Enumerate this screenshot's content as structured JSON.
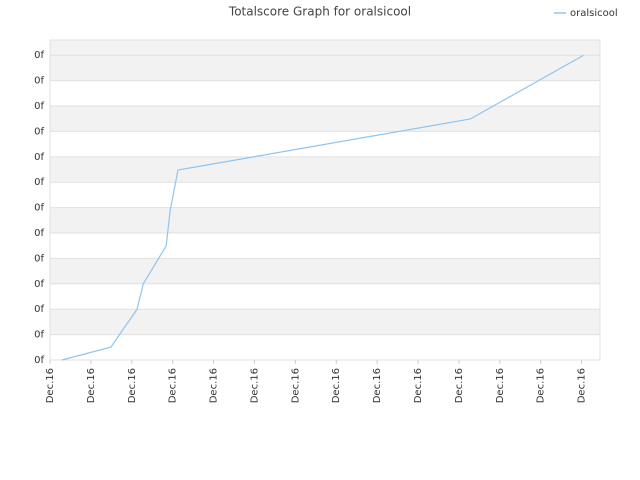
{
  "chart_data": {
    "type": "line",
    "title": "Totalscore Graph for oralsicool",
    "x": [
      0.29,
      1.49,
      2.13,
      2.28,
      2.84,
      2.94,
      3.13,
      10.28,
      13.05
    ],
    "series": [
      {
        "name": "oralsicool",
        "color": "#90c4ee",
        "values": [
          0,
          0.51,
          2.0,
          3.0,
          4.49,
          5.9,
          7.48,
          9.49,
          12.0
        ]
      }
    ],
    "xlim": [
      0,
      13.45
    ],
    "xticks": [
      {
        "value": 0,
        "label": "Dec.16"
      },
      {
        "value": 1,
        "label": "Dec.16"
      },
      {
        "value": 2,
        "label": "Dec.16"
      },
      {
        "value": 3,
        "label": "Dec.16"
      },
      {
        "value": 4,
        "label": "Dec.16"
      },
      {
        "value": 5,
        "label": "Dec.16"
      },
      {
        "value": 6,
        "label": "Dec.16"
      },
      {
        "value": 7,
        "label": "Dec.16"
      },
      {
        "value": 8,
        "label": "Dec.16"
      },
      {
        "value": 9,
        "label": "Dec.16"
      },
      {
        "value": 10,
        "label": "Dec.16"
      },
      {
        "value": 11,
        "label": "Dec.16"
      },
      {
        "value": 12,
        "label": "Dec.16"
      },
      {
        "value": 13,
        "label": "Dec.16"
      }
    ],
    "ylim": [
      0,
      12.6
    ],
    "yticks": [
      {
        "value": 0,
        "label": "0f"
      },
      {
        "value": 1,
        "label": "0f"
      },
      {
        "value": 2,
        "label": "0f"
      },
      {
        "value": 3,
        "label": "0f"
      },
      {
        "value": 4,
        "label": "0f"
      },
      {
        "value": 5,
        "label": "0f"
      },
      {
        "value": 6,
        "label": "0f"
      },
      {
        "value": 7,
        "label": "0f"
      },
      {
        "value": 8,
        "label": "0f"
      },
      {
        "value": 9,
        "label": "0f"
      },
      {
        "value": 10,
        "label": "0f"
      },
      {
        "value": 11,
        "label": "0f"
      },
      {
        "value": 12,
        "label": "0f"
      }
    ],
    "grid": true,
    "legend": "top-right"
  }
}
